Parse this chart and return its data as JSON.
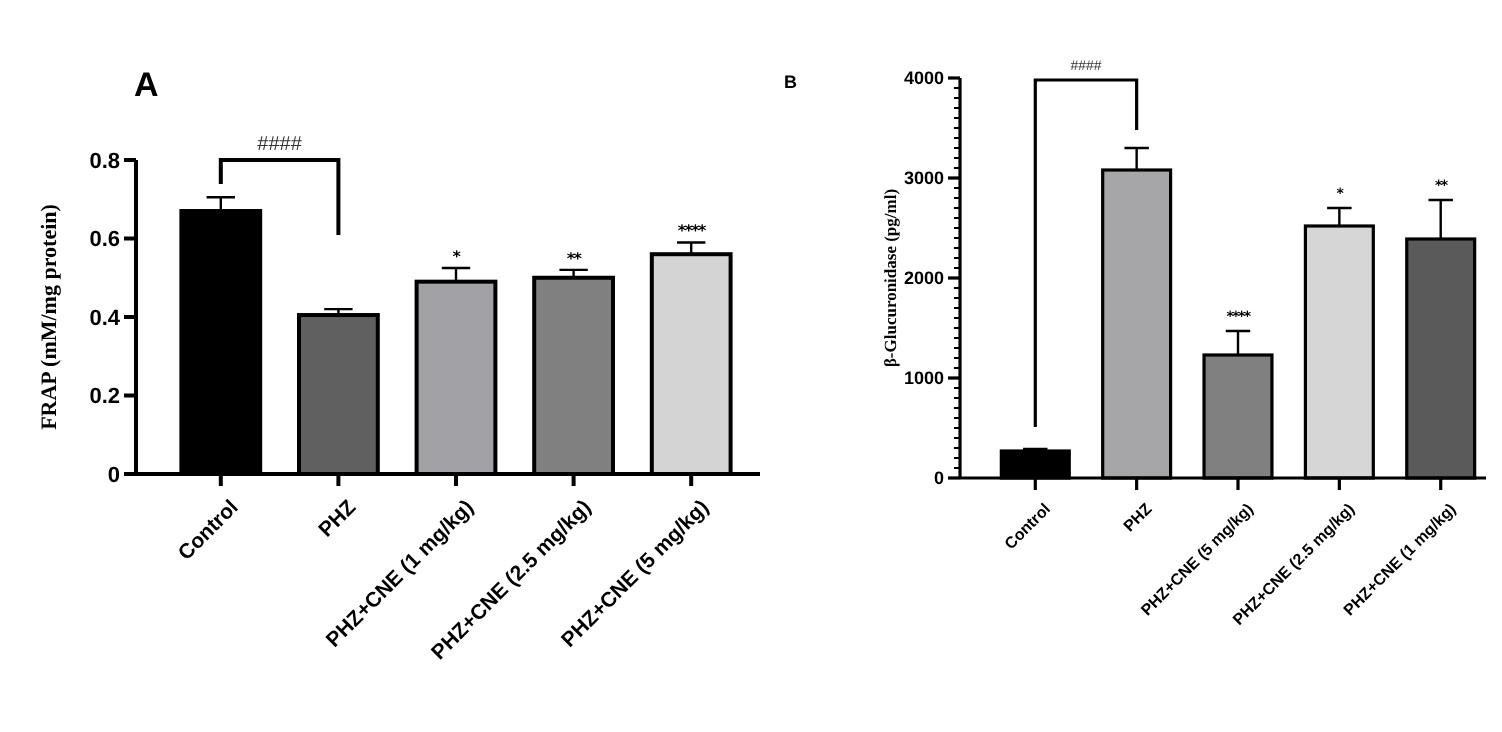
{
  "chart_data": [
    {
      "type": "bar",
      "title": "A",
      "ylabel": "FRAP (mM/mg protein)",
      "categories": [
        "Control",
        "PHZ",
        "PHZ+CNE (1 mg/kg)",
        "PHZ+CNE (2.5 mg/kg)",
        "PHZ+CNE (5 mg/kg)"
      ],
      "values": [
        0.67,
        0.405,
        0.49,
        0.5,
        0.56
      ],
      "colors": [
        "#000000",
        "#606060",
        "#a2a2a6",
        "#808080",
        "#d4d4d4"
      ],
      "errors": [
        0.035,
        0.015,
        0.035,
        0.02,
        0.03
      ],
      "ylim": [
        0,
        0.8
      ],
      "yticks": [
        0,
        0.2,
        0.4,
        0.6,
        0.8
      ],
      "annotations": [
        "####",
        "*",
        "**",
        "****"
      ]
    },
    {
      "type": "bar",
      "title": "B",
      "ylabel": "β-Glucuronidase (pg/ml)",
      "categories": [
        "Control",
        "PHZ",
        "PHZ+CNE (5 mg/kg)",
        "PHZ+CNE (2.5 mg/kg)",
        "PHZ+CNE (1 mg/kg)"
      ],
      "values": [
        270,
        3080,
        1230,
        2520,
        2390
      ],
      "colors": [
        "#000000",
        "#a6a6a9",
        "#808080",
        "#d6d6d6",
        "#5a5a5a"
      ],
      "errors": [
        20,
        220,
        240,
        180,
        390
      ],
      "ylim": [
        0,
        4000
      ],
      "yticks": [
        0,
        {
          "value": 100,
          "label": null
        },
        {
          "value": 200,
          "label": null
        },
        {
          "value": 300,
          "label": null
        },
        {
          "value": 400,
          "label": null
        },
        {
          "value": 500,
          "label": null
        },
        {
          "value": 600,
          "label": null
        },
        {
          "value": 700,
          "label": null
        },
        {
          "value": 800,
          "label": null
        },
        {
          "value": 900,
          "label": null
        },
        1000,
        {
          "value": 1100,
          "label": null
        },
        {
          "value": 1200,
          "label": null
        },
        {
          "value": 1300,
          "label": null
        },
        {
          "value": 1400,
          "label": null
        },
        {
          "value": 1500,
          "label": null
        },
        {
          "value": 1600,
          "label": null
        },
        {
          "value": 1700,
          "label": null
        },
        {
          "value": 1800,
          "label": null
        },
        {
          "value": 1900,
          "label": null
        },
        2000,
        {
          "value": 2100,
          "label": null
        },
        {
          "value": 2200,
          "label": null
        },
        {
          "value": 2300,
          "label": null
        },
        {
          "value": 2400,
          "label": null
        },
        {
          "value": 2500,
          "label": null
        },
        {
          "value": 2600,
          "label": null
        },
        {
          "value": 2700,
          "label": null
        },
        {
          "value": 2800,
          "label": null
        },
        {
          "value": 2900,
          "label": null
        },
        3000,
        {
          "value": 3100,
          "label": null
        },
        {
          "value": 3200,
          "label": null
        },
        {
          "value": 3300,
          "label": null
        },
        {
          "value": 3400,
          "label": null
        },
        {
          "value": 3500,
          "label": null
        },
        {
          "value": 3600,
          "label": null
        },
        {
          "value": 3700,
          "label": null
        },
        {
          "value": 3800,
          "label": null
        },
        {
          "value": 3900,
          "label": null
        },
        4000
      ],
      "annotations": [
        "####",
        "****",
        "*",
        "**"
      ]
    }
  ]
}
